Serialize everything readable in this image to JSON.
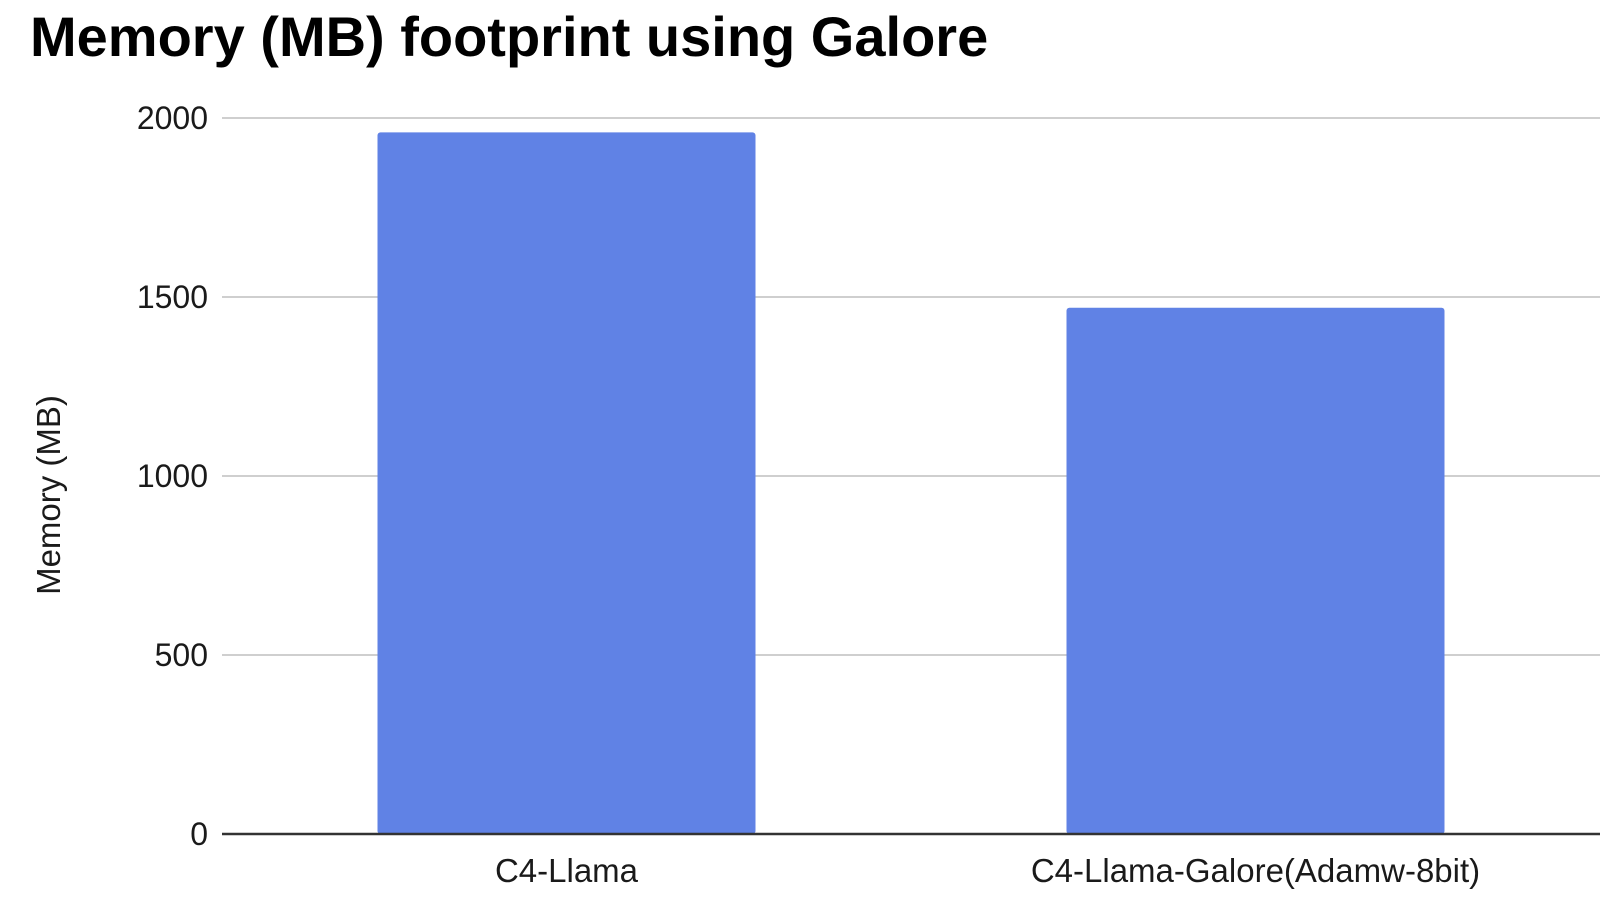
{
  "chart_data": {
    "type": "bar",
    "title": "Memory (MB) footprint using Galore",
    "xlabel": "",
    "ylabel": "Memory (MB)",
    "categories": [
      "C4-Llama",
      "C4-Llama-Galore(Adamw-8bit)"
    ],
    "values": [
      1960,
      1470
    ],
    "ylim": [
      0,
      2000
    ],
    "yticks": [
      0,
      500,
      1000,
      1500,
      2000
    ],
    "grid": true,
    "legend": "none",
    "colors": {
      "bar": "#6082e5",
      "grid": "#cfcfcf",
      "axis": "#333333",
      "text": "#1a1a1a"
    }
  }
}
